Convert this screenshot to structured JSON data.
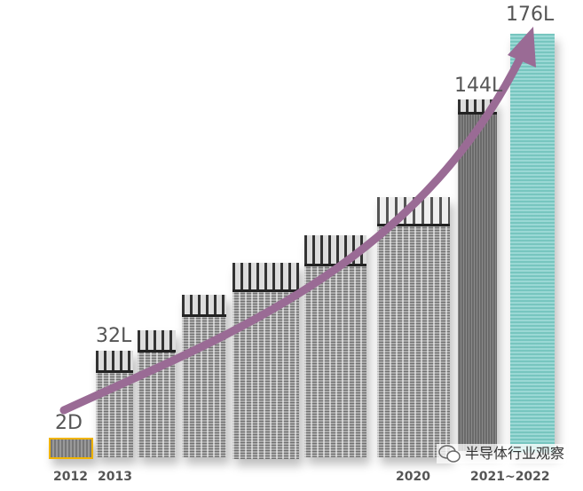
{
  "layer_labels": {
    "l2d": "2D",
    "l32": "32L",
    "l144": "144L",
    "l176": "176L"
  },
  "years": {
    "y2012": "2012",
    "y2013": "2013",
    "y2020": "2020",
    "y2021": "2021~2022"
  },
  "watermark": {
    "text": "半导体行业观察",
    "icon": "wechat-icon"
  },
  "colors": {
    "arrow": "#9a6b95",
    "highlight": "#f0b400",
    "latest": "#bfe8e5"
  }
}
